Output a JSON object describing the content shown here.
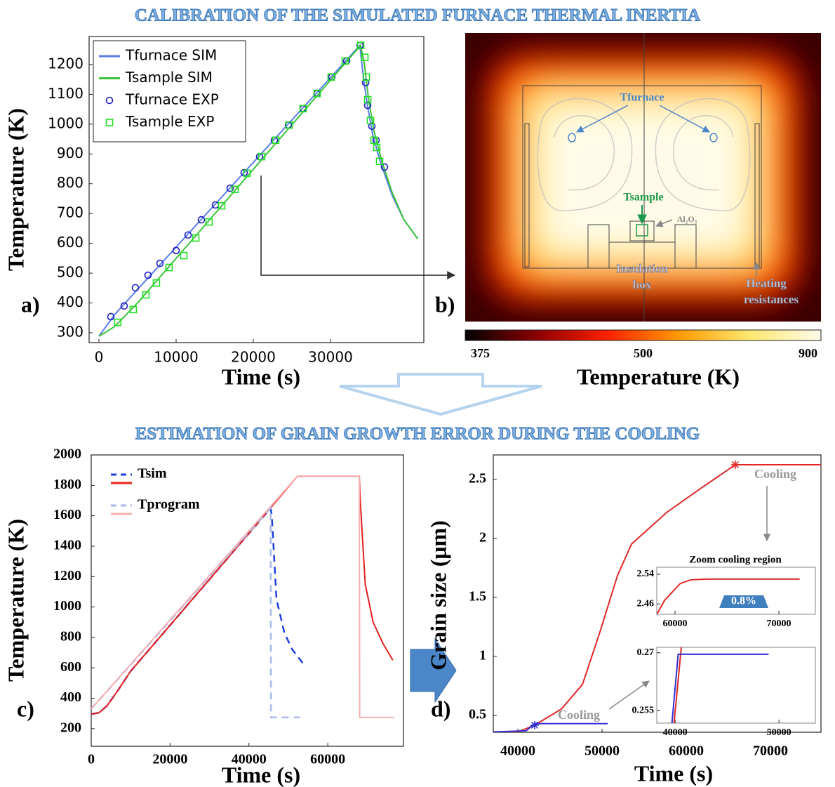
{
  "headings": [
    "CALIBRATION OF THE SIMULATED FURNACE THERMAL INERTIA",
    "ESTIMATION OF GRAIN GROWTH ERROR DURING THE COOLING"
  ],
  "chart_data": [
    {
      "type": "line",
      "panel": "a)",
      "xlabel": "Time (s)",
      "ylabel": "Temperature (K)",
      "xlim": [
        -1270,
        42090
      ],
      "ylim": [
        267,
        1294
      ],
      "xticks": [
        0,
        10000,
        20000,
        30000
      ],
      "yticks": [
        300,
        400,
        500,
        600,
        700,
        800,
        900,
        1000,
        1100,
        1200
      ],
      "legend": "upper left",
      "series": [
        {
          "name": "Tfurnace SIM",
          "color": "#5b7ee8",
          "style": "line",
          "x": [
            0,
            2000,
            33800,
            34300,
            34800,
            35500,
            36500,
            38000,
            39500,
            41300
          ],
          "values": [
            288,
            360,
            1264,
            1150,
            1060,
            960,
            870,
            760,
            680,
            615
          ]
        },
        {
          "name": "Tsample SIM",
          "color": "#3cc43c",
          "style": "line",
          "x": [
            0,
            2000,
            5000,
            33900,
            34400,
            34900,
            35600,
            36600,
            38000,
            39500,
            41300
          ],
          "values": [
            288,
            320,
            400,
            1264,
            1200,
            1090,
            980,
            880,
            770,
            680,
            615
          ]
        },
        {
          "name": "Tfurnace EXP",
          "color": "#2020c0",
          "style": "markers",
          "marker": "circle",
          "x": [
            1550,
            3270,
            4730,
            6360,
            7910,
            10000,
            11550,
            13270,
            15090,
            17000,
            18820,
            20820,
            22730,
            24550,
            26450,
            28270,
            30180,
            32090,
            33820,
            34550,
            34820,
            35360,
            35910,
            37000
          ],
          "values": [
            354,
            390,
            451,
            493,
            533,
            576,
            628,
            679,
            729,
            785,
            837,
            891,
            946,
            997,
            1052,
            1103,
            1158,
            1212,
            1264,
            1139,
            1063,
            993,
            946,
            856
          ]
        },
        {
          "name": "Tsample EXP",
          "color": "#22dd22",
          "style": "markers",
          "marker": "square",
          "x": [
            2450,
            4450,
            6090,
            7450,
            9090,
            11000,
            12550,
            14270,
            15910,
            17640,
            19180,
            21090,
            22910,
            24640,
            26450,
            28270,
            30090,
            31910,
            33910,
            34450,
            34640,
            34820,
            35180,
            35640,
            36000,
            36360
          ],
          "values": [
            335,
            378,
            427,
            467,
            519,
            559,
            618,
            672,
            726,
            781,
            835,
            891,
            946,
            997,
            1052,
            1103,
            1158,
            1212,
            1264,
            1224,
            1158,
            1082,
            1012,
            946,
            922,
            875
          ]
        }
      ]
    },
    {
      "type": "heatmap",
      "panel": "b)",
      "annotations": [
        "Tfurnace",
        "Tsample",
        "Al₂O₃",
        "Insulation",
        "box",
        "Heating",
        "resistances"
      ],
      "colorbar": {
        "ticks": [
          375,
          500,
          900
        ],
        "colors": [
          "#000000",
          "#8b0000",
          "#ff2000",
          "#ff9a00",
          "#ffe870",
          "#fffbea"
        ],
        "label": "Temperature (K)"
      }
    },
    {
      "type": "line",
      "panel": "c)",
      "xlabel": "Time (s)",
      "ylabel": "Temperature (K)",
      "xlim": [
        0,
        79200
      ],
      "ylim": [
        84,
        2000
      ],
      "xticks": [
        0,
        20000,
        40000,
        60000
      ],
      "yticks": [
        200,
        400,
        600,
        800,
        1000,
        1200,
        1400,
        1600,
        1800,
        2000
      ],
      "legend": "upper left",
      "series": [
        {
          "name": "Tsim",
          "runs": [
            {
              "color": "#1f3fdd",
              "style": "line",
              "dash": true,
              "x": [
                0,
                2000,
                4000,
                7000,
                10000,
                15000,
                20000,
                30000,
                40000,
                45500,
                45800,
                47000,
                49000,
                51000,
                53700
              ],
              "values": [
                295,
                305,
                350,
                460,
                578,
                729,
                880,
                1182,
                1484,
                1650,
                1600,
                1050,
                830,
                720,
                630
              ]
            },
            {
              "color": "#e8201e",
              "style": "line",
              "x": [
                0,
                2000,
                4000,
                7000,
                10000,
                15000,
                20000,
                30000,
                40000,
                52300,
                68000,
                68200,
                69500,
                71500,
                74000,
                76500
              ],
              "values": [
                295,
                305,
                350,
                460,
                578,
                729,
                880,
                1182,
                1484,
                1860,
                1860,
                1720,
                1150,
                900,
                760,
                650
              ]
            }
          ]
        },
        {
          "name": "Tprogram",
          "runs": [
            {
              "color": "#a8b8e8",
              "style": "line",
              "dash": true,
              "x": [
                0,
                45500,
                45600,
                53000
              ],
              "values": [
                330,
                1650,
                274,
                274
              ]
            },
            {
              "color": "#f4b0b0",
              "style": "line",
              "x": [
                0,
                52300,
                68000,
                68100,
                76800
              ],
              "values": [
                330,
                1860,
                1860,
                274,
                274
              ]
            }
          ]
        }
      ]
    },
    {
      "type": "line",
      "panel": "d)",
      "xlabel": "Time (s)",
      "ylabel": "Grain size (μm)",
      "xlim": [
        37080,
        76000
      ],
      "ylim": [
        0.357,
        2.708
      ],
      "xticks": [
        40000,
        50000,
        60000,
        70000
      ],
      "yticks": [
        0.5,
        1,
        1.5,
        2,
        2.5
      ],
      "annotations": [
        "Cooling",
        "Cooling"
      ],
      "series": [
        {
          "color": "#e02828",
          "style": "line",
          "x": [
            37080,
            40000,
            42000,
            45170,
            47670,
            49750,
            51830,
            53500,
            57670,
            61830,
            65830,
            76000
          ],
          "values": [
            0.357,
            0.36,
            0.417,
            0.554,
            0.762,
            1.208,
            1.685,
            1.952,
            2.22,
            2.43,
            2.625,
            2.625
          ]
        },
        {
          "color": "#3030d8",
          "style": "line",
          "x": [
            37080,
            41000,
            42000,
            50670
          ],
          "values": [
            0.36,
            0.37,
            0.43,
            0.43
          ]
        },
        {
          "color": "#e02828",
          "style": "markers",
          "marker": "star",
          "x": [
            65830
          ],
          "values": [
            2.625
          ]
        },
        {
          "color": "#3030d8",
          "style": "markers",
          "marker": "star",
          "x": [
            42000
          ],
          "values": [
            0.417
          ]
        }
      ],
      "insets": {
        "title": "Zoom cooling region",
        "charts": [
          {
            "type": "line",
            "xlim": [
              58240,
              73510
            ],
            "ylim": [
              2.432,
              2.559
            ],
            "xticks": [
              60000,
              70000
            ],
            "yticks": [
              2.46,
              2.54
            ],
            "annotation": "0.8%",
            "series": [
              {
                "color": "#e02828",
                "style": "line",
                "x": [
                  58240,
                  59000,
                  60500,
                  61500,
                  63000,
                  72000
                ],
                "values": [
                  2.432,
                  2.47,
                  2.515,
                  2.525,
                  2.527,
                  2.527
                ]
              }
            ]
          },
          {
            "type": "line",
            "xlim": [
              38240,
              53500
            ],
            "ylim": [
              0.2518,
              0.2714
            ],
            "xticks": [
              40000,
              50000
            ],
            "yticks": [
              0.255,
              0.27
            ],
            "series": [
              {
                "color": "#e02828",
                "style": "line",
                "x": [
                  39900,
                  40600
                ],
                "values": [
                  0.2518,
                  0.2714
                ]
              },
              {
                "color": "#3030d8",
                "style": "line",
                "x": [
                  39700,
                  40300,
                  49000
                ],
                "values": [
                  0.2518,
                  0.2696,
                  0.2696
                ]
              }
            ]
          }
        ]
      }
    }
  ]
}
